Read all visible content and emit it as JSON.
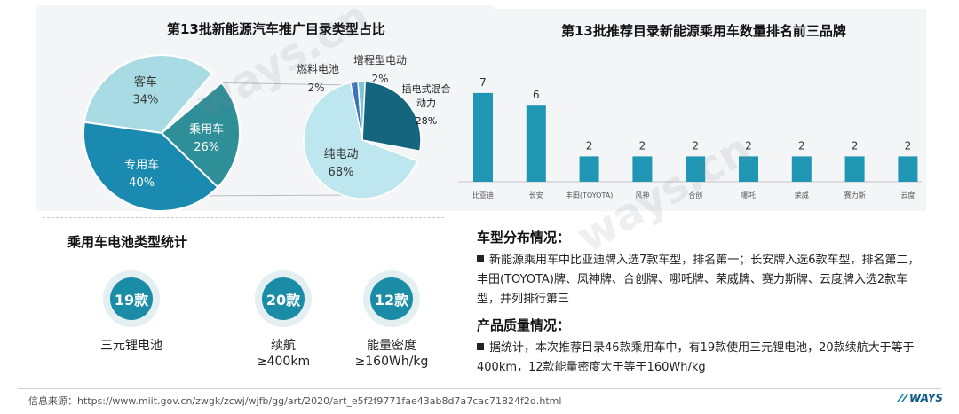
{
  "chart_data": [
    {
      "type": "pie",
      "title": "第13批新能源汽车推广目录类型占比",
      "slices": [
        {
          "label": "客车",
          "value": 34,
          "value_text": "34%",
          "color": "#a8dbe3"
        },
        {
          "label": "乘用车",
          "value": 26,
          "value_text": "26%",
          "color": "#2f8f98"
        },
        {
          "label": "专用车",
          "value": 40,
          "value_text": "40%",
          "color": "#1b8ab0"
        }
      ],
      "breakdown_of": "乘用车",
      "sub_slices": [
        {
          "label": "插电式混合动力",
          "value": 28,
          "value_text": "28%",
          "color": "#16657f"
        },
        {
          "label": "纯电动",
          "value": 68,
          "value_text": "68%",
          "color": "#bde6ee"
        },
        {
          "label": "燃料电池",
          "value": 2,
          "value_text": "2%",
          "color": "#7ec3d6"
        },
        {
          "label": "增程型电动",
          "value": 2,
          "value_text": "2%",
          "color": "#3c73b8"
        }
      ]
    },
    {
      "type": "bar",
      "title": "第13批推荐目录新能源乘用车数量排名前三品牌",
      "categories": [
        "比亚迪",
        "长安",
        "丰田(TOYOTA)",
        "风神",
        "合创",
        "哪吒",
        "荣威",
        "赛力斯",
        "云度"
      ],
      "values": [
        7,
        6,
        2,
        2,
        2,
        2,
        2,
        2,
        2
      ],
      "color": "#1e96b4"
    }
  ],
  "battery": {
    "title": "乘用车电池类型统计",
    "stats": [
      {
        "value": "19款",
        "label_lines": [
          "三元锂电池"
        ]
      },
      {
        "value": "20款",
        "label_lines": [
          "续航",
          "≥400km"
        ]
      },
      {
        "value": "12款",
        "label_lines": [
          "能量密度",
          "≥160Wh/kg"
        ]
      }
    ]
  },
  "info": {
    "model_title": "车型分布情况：",
    "model_text": "新能源乘用车中比亚迪牌入选7款车型，排名第一；长安牌入选6款车型，排名第二，丰田(TOYOTA)牌、风神牌、合创牌、哪吒牌、荣威牌、赛力斯牌、云度牌入选2款车型，并列排行第三",
    "quality_title": "产品质量情况：",
    "quality_text": "据统计，本次推荐目录46款乘用车中，有19款使用三元锂电池，20款续航大于等于400km，12款能量密度大于等于160Wh/kg"
  },
  "footer": {
    "source": "信息来源：https://www.miit.gov.cn/zwgk/zcwj/wjfb/gg/art/2020/art_e5f2f9771fae43ab8d7a7cac71824f2d.html",
    "logo_text": "WAYS"
  },
  "watermarks": [
    "ways.cn",
    "ways.cn"
  ]
}
